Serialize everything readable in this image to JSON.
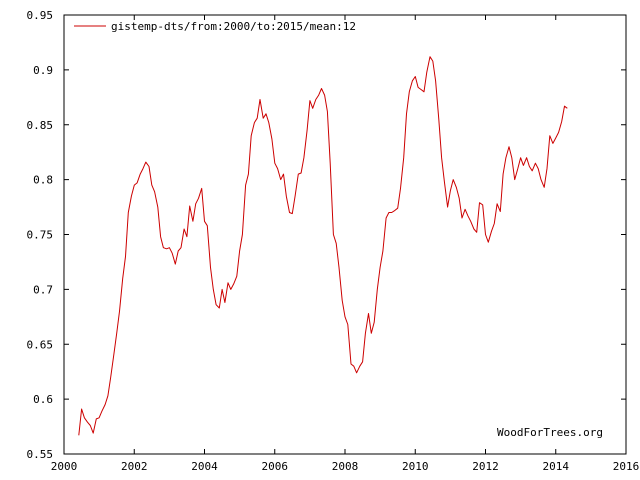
{
  "chart_data": {
    "type": "line",
    "title": "",
    "xlabel": "",
    "ylabel": "",
    "xlim": [
      2000,
      2016
    ],
    "ylim": [
      0.55,
      0.95
    ],
    "x_ticks": [
      2000,
      2002,
      2004,
      2006,
      2008,
      2010,
      2012,
      2014,
      2016
    ],
    "x_tick_labels": [
      "2000",
      "2002",
      "2004",
      "2006",
      "2008",
      "2010",
      "2012",
      "2014",
      "2016"
    ],
    "y_ticks": [
      0.55,
      0.6,
      0.65,
      0.7,
      0.75,
      0.8,
      0.85,
      0.9,
      0.95
    ],
    "y_tick_labels": [
      "0.55",
      "0.6",
      "0.65",
      "0.7",
      "0.75",
      "0.8",
      "0.85",
      "0.9",
      "0.95"
    ],
    "grid": false,
    "legend_position": "top-left",
    "credit": "WoodForTrees.org",
    "series": [
      {
        "name": "gistemp-dts/from:2000/to:2015/mean:12",
        "color": "#cc0000",
        "points": [
          [
            2000.42,
            0.567
          ],
          [
            2000.5,
            0.591
          ],
          [
            2000.58,
            0.583
          ],
          [
            2000.67,
            0.579
          ],
          [
            2000.75,
            0.576
          ],
          [
            2000.83,
            0.569
          ],
          [
            2000.92,
            0.582
          ],
          [
            2001.0,
            0.583
          ],
          [
            2001.08,
            0.589
          ],
          [
            2001.17,
            0.595
          ],
          [
            2001.25,
            0.603
          ],
          [
            2001.33,
            0.62
          ],
          [
            2001.42,
            0.641
          ],
          [
            2001.5,
            0.66
          ],
          [
            2001.58,
            0.68
          ],
          [
            2001.67,
            0.71
          ],
          [
            2001.75,
            0.73
          ],
          [
            2001.83,
            0.77
          ],
          [
            2001.92,
            0.785
          ],
          [
            2002.0,
            0.795
          ],
          [
            2002.08,
            0.797
          ],
          [
            2002.17,
            0.805
          ],
          [
            2002.25,
            0.81
          ],
          [
            2002.33,
            0.816
          ],
          [
            2002.42,
            0.812
          ],
          [
            2002.5,
            0.795
          ],
          [
            2002.58,
            0.789
          ],
          [
            2002.67,
            0.775
          ],
          [
            2002.75,
            0.748
          ],
          [
            2002.83,
            0.738
          ],
          [
            2002.92,
            0.737
          ],
          [
            2003.0,
            0.738
          ],
          [
            2003.08,
            0.733
          ],
          [
            2003.17,
            0.723
          ],
          [
            2003.25,
            0.735
          ],
          [
            2003.33,
            0.738
          ],
          [
            2003.42,
            0.755
          ],
          [
            2003.5,
            0.748
          ],
          [
            2003.58,
            0.776
          ],
          [
            2003.67,
            0.762
          ],
          [
            2003.75,
            0.778
          ],
          [
            2003.83,
            0.783
          ],
          [
            2003.92,
            0.792
          ],
          [
            2004.0,
            0.762
          ],
          [
            2004.08,
            0.758
          ],
          [
            2004.17,
            0.72
          ],
          [
            2004.25,
            0.7
          ],
          [
            2004.33,
            0.686
          ],
          [
            2004.42,
            0.683
          ],
          [
            2004.5,
            0.7
          ],
          [
            2004.58,
            0.688
          ],
          [
            2004.67,
            0.706
          ],
          [
            2004.75,
            0.7
          ],
          [
            2004.83,
            0.705
          ],
          [
            2004.92,
            0.712
          ],
          [
            2005.0,
            0.735
          ],
          [
            2005.08,
            0.75
          ],
          [
            2005.17,
            0.795
          ],
          [
            2005.25,
            0.805
          ],
          [
            2005.33,
            0.84
          ],
          [
            2005.42,
            0.852
          ],
          [
            2005.5,
            0.856
          ],
          [
            2005.58,
            0.873
          ],
          [
            2005.67,
            0.856
          ],
          [
            2005.75,
            0.86
          ],
          [
            2005.83,
            0.852
          ],
          [
            2005.92,
            0.837
          ],
          [
            2006.0,
            0.815
          ],
          [
            2006.08,
            0.81
          ],
          [
            2006.17,
            0.8
          ],
          [
            2006.25,
            0.805
          ],
          [
            2006.33,
            0.785
          ],
          [
            2006.42,
            0.77
          ],
          [
            2006.5,
            0.769
          ],
          [
            2006.58,
            0.785
          ],
          [
            2006.67,
            0.805
          ],
          [
            2006.75,
            0.806
          ],
          [
            2006.83,
            0.82
          ],
          [
            2006.92,
            0.845
          ],
          [
            2007.0,
            0.872
          ],
          [
            2007.08,
            0.865
          ],
          [
            2007.17,
            0.873
          ],
          [
            2007.25,
            0.877
          ],
          [
            2007.33,
            0.883
          ],
          [
            2007.42,
            0.877
          ],
          [
            2007.5,
            0.862
          ],
          [
            2007.58,
            0.815
          ],
          [
            2007.67,
            0.75
          ],
          [
            2007.75,
            0.742
          ],
          [
            2007.83,
            0.72
          ],
          [
            2007.92,
            0.69
          ],
          [
            2008.0,
            0.675
          ],
          [
            2008.08,
            0.668
          ],
          [
            2008.17,
            0.632
          ],
          [
            2008.25,
            0.63
          ],
          [
            2008.33,
            0.624
          ],
          [
            2008.42,
            0.63
          ],
          [
            2008.5,
            0.634
          ],
          [
            2008.58,
            0.66
          ],
          [
            2008.67,
            0.678
          ],
          [
            2008.75,
            0.66
          ],
          [
            2008.83,
            0.67
          ],
          [
            2008.92,
            0.7
          ],
          [
            2009.0,
            0.72
          ],
          [
            2009.08,
            0.735
          ],
          [
            2009.17,
            0.765
          ],
          [
            2009.25,
            0.77
          ],
          [
            2009.33,
            0.77
          ],
          [
            2009.42,
            0.772
          ],
          [
            2009.5,
            0.774
          ],
          [
            2009.58,
            0.792
          ],
          [
            2009.67,
            0.82
          ],
          [
            2009.75,
            0.86
          ],
          [
            2009.83,
            0.88
          ],
          [
            2009.92,
            0.89
          ],
          [
            2010.0,
            0.894
          ],
          [
            2010.08,
            0.884
          ],
          [
            2010.17,
            0.882
          ],
          [
            2010.25,
            0.88
          ],
          [
            2010.33,
            0.898
          ],
          [
            2010.42,
            0.912
          ],
          [
            2010.5,
            0.908
          ],
          [
            2010.58,
            0.89
          ],
          [
            2010.67,
            0.855
          ],
          [
            2010.75,
            0.82
          ],
          [
            2010.83,
            0.798
          ],
          [
            2010.92,
            0.775
          ],
          [
            2011.0,
            0.79
          ],
          [
            2011.08,
            0.8
          ],
          [
            2011.17,
            0.793
          ],
          [
            2011.25,
            0.783
          ],
          [
            2011.33,
            0.765
          ],
          [
            2011.42,
            0.773
          ],
          [
            2011.5,
            0.767
          ],
          [
            2011.58,
            0.762
          ],
          [
            2011.67,
            0.755
          ],
          [
            2011.75,
            0.752
          ],
          [
            2011.83,
            0.779
          ],
          [
            2011.92,
            0.777
          ],
          [
            2012.0,
            0.75
          ],
          [
            2012.08,
            0.743
          ],
          [
            2012.17,
            0.753
          ],
          [
            2012.25,
            0.76
          ],
          [
            2012.33,
            0.778
          ],
          [
            2012.42,
            0.771
          ],
          [
            2012.5,
            0.805
          ],
          [
            2012.58,
            0.82
          ],
          [
            2012.67,
            0.83
          ],
          [
            2012.75,
            0.82
          ],
          [
            2012.83,
            0.8
          ],
          [
            2012.92,
            0.81
          ],
          [
            2013.0,
            0.82
          ],
          [
            2013.08,
            0.813
          ],
          [
            2013.17,
            0.82
          ],
          [
            2013.25,
            0.812
          ],
          [
            2013.33,
            0.808
          ],
          [
            2013.42,
            0.815
          ],
          [
            2013.5,
            0.81
          ],
          [
            2013.58,
            0.8
          ],
          [
            2013.67,
            0.793
          ],
          [
            2013.75,
            0.81
          ],
          [
            2013.83,
            0.84
          ],
          [
            2013.92,
            0.833
          ],
          [
            2014.0,
            0.838
          ],
          [
            2014.08,
            0.843
          ],
          [
            2014.17,
            0.853
          ],
          [
            2014.25,
            0.867
          ],
          [
            2014.33,
            0.865
          ]
        ]
      }
    ]
  }
}
